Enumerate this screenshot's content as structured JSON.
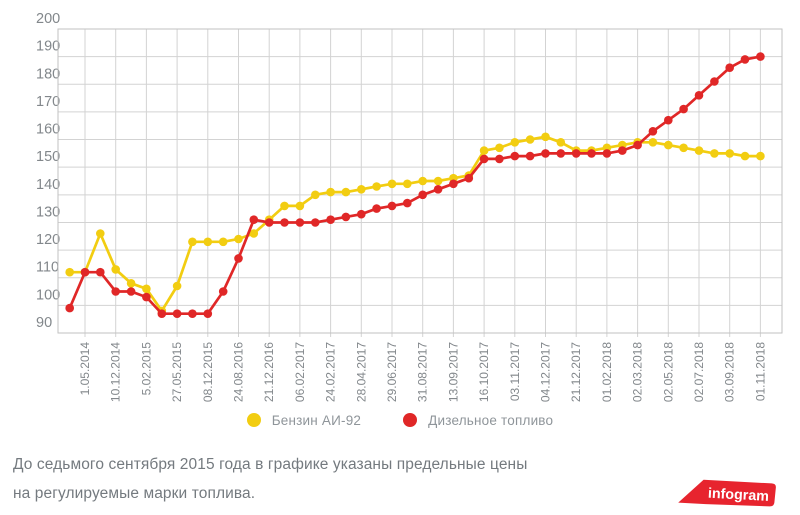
{
  "chart_data": {
    "type": "line",
    "title": "",
    "xlabel": "",
    "ylabel": "",
    "ylim": [
      90,
      200
    ],
    "grid": true,
    "legend_position": "bottom",
    "y_ticks": [
      200,
      190,
      180,
      170,
      160,
      150,
      140,
      130,
      120,
      110,
      100,
      90
    ],
    "x_labels": [
      "1.05.2014",
      "10.12.2014",
      "5.02.2015",
      "27.05.2015",
      "08.12.2015",
      "24.08.2016",
      "21.12.2016",
      "06.02.2017",
      "24.02.2017",
      "28.04.2017",
      "29.06.2017",
      "31.08.2017",
      "13.09.2017",
      "16.10.2017",
      "03.11.2017",
      "04.12.2017",
      "21.12.2017",
      "01.02.2018",
      "02.03.2018",
      "02.05.2018",
      "02.07.2018",
      "03.09.2018",
      "01.11.2018"
    ],
    "label_point_start": 1,
    "label_point_step": 2,
    "series": [
      {
        "name": "Бензин АИ-92",
        "color": "#f2cd11",
        "values": [
          112,
          112,
          126,
          113,
          108,
          106,
          98,
          107,
          123,
          123,
          123,
          124,
          126,
          131,
          136,
          136,
          140,
          141,
          141,
          142,
          143,
          144,
          144,
          145,
          145,
          146,
          147,
          156,
          157,
          159,
          160,
          161,
          159,
          156,
          156,
          157,
          158,
          159,
          159,
          158,
          157,
          156,
          155,
          155,
          154,
          154
        ]
      },
      {
        "name": "Дизельное топливо",
        "color": "#e02727",
        "values": [
          99,
          112,
          112,
          105,
          105,
          103,
          97,
          97,
          97,
          97,
          105,
          117,
          131,
          130,
          130,
          130,
          130,
          131,
          132,
          133,
          135,
          136,
          137,
          140,
          142,
          144,
          146,
          153,
          153,
          154,
          154,
          155,
          155,
          155,
          155,
          155,
          156,
          158,
          163,
          167,
          171,
          176,
          181,
          186,
          189,
          190
        ]
      }
    ]
  },
  "caption": {
    "line1": "До седьмого сентября 2015 года в графике указаны предельные цены",
    "line2": "на регулируемые марки топлива."
  },
  "logo": {
    "text": "infogram",
    "color": "#e7242e"
  }
}
